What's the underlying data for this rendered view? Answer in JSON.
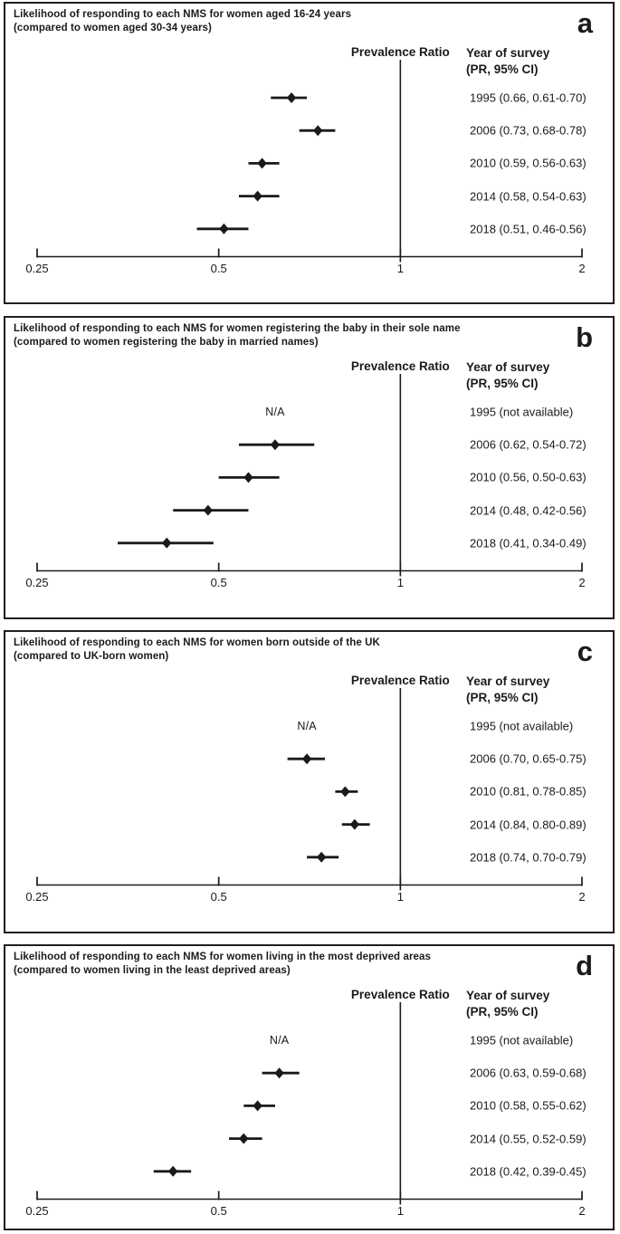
{
  "page": {
    "background": "#ffffff",
    "text_color": "#1a1a1a",
    "line_color": "#1a1a1a",
    "border_color": "#1f1f1f"
  },
  "headers": {
    "prevalence": "Prevalence Ratio",
    "year_line1": "Year of survey",
    "year_line2": "(PR, 95% CI)"
  },
  "na_text": "N/A",
  "axis": {
    "scale": "log2",
    "min": 0.25,
    "max": 2,
    "tick_values": [
      0.25,
      0.5,
      1,
      2
    ],
    "ticks": [
      "0.25",
      "0.5",
      "1",
      "2"
    ],
    "reference_value": 1
  },
  "chart_data": [
    {
      "type": "scatter",
      "subtype": "forest-plot",
      "panel_label": "a",
      "title": "Likelihood of responding to each NMS for women aged 16-24 years",
      "subtitle": "(compared to women aged 30-34 years)",
      "xlabel": "Prevalence Ratio",
      "x_scale": "log",
      "xlim": [
        0.25,
        2
      ],
      "reference_line": 1,
      "series": [
        {
          "year": "1995",
          "pr": 0.66,
          "ci_low": 0.61,
          "ci_high": 0.7,
          "label": "1995 (0.66, 0.61-0.70)"
        },
        {
          "year": "2006",
          "pr": 0.73,
          "ci_low": 0.68,
          "ci_high": 0.78,
          "label": "2006 (0.73, 0.68-0.78)"
        },
        {
          "year": "2010",
          "pr": 0.59,
          "ci_low": 0.56,
          "ci_high": 0.63,
          "label": "2010 (0.59, 0.56-0.63)"
        },
        {
          "year": "2014",
          "pr": 0.58,
          "ci_low": 0.54,
          "ci_high": 0.63,
          "label": "2014 (0.58, 0.54-0.63)"
        },
        {
          "year": "2018",
          "pr": 0.51,
          "ci_low": 0.46,
          "ci_high": 0.56,
          "label": "2018 (0.51, 0.46-0.56)"
        }
      ]
    },
    {
      "type": "scatter",
      "subtype": "forest-plot",
      "panel_label": "b",
      "title": "Likelihood of responding to each NMS for women registering the baby in their sole name",
      "subtitle": "(compared to women registering the baby in married names)",
      "xlabel": "Prevalence Ratio",
      "x_scale": "log",
      "xlim": [
        0.25,
        2
      ],
      "reference_line": 1,
      "series": [
        {
          "year": "1995",
          "pr": null,
          "ci_low": null,
          "ci_high": null,
          "label": "1995 (not available)",
          "na_at": 0.62
        },
        {
          "year": "2006",
          "pr": 0.62,
          "ci_low": 0.54,
          "ci_high": 0.72,
          "label": "2006 (0.62, 0.54-0.72)"
        },
        {
          "year": "2010",
          "pr": 0.56,
          "ci_low": 0.5,
          "ci_high": 0.63,
          "label": "2010 (0.56, 0.50-0.63)"
        },
        {
          "year": "2014",
          "pr": 0.48,
          "ci_low": 0.42,
          "ci_high": 0.56,
          "label": "2014 (0.48, 0.42-0.56)"
        },
        {
          "year": "2018",
          "pr": 0.41,
          "ci_low": 0.34,
          "ci_high": 0.49,
          "label": "2018 (0.41, 0.34-0.49)"
        }
      ]
    },
    {
      "type": "scatter",
      "subtype": "forest-plot",
      "panel_label": "c",
      "title": "Likelihood of responding to each NMS for women born outside of the UK",
      "subtitle": "(compared to UK-born women)",
      "xlabel": "Prevalence Ratio",
      "x_scale": "log",
      "xlim": [
        0.25,
        2
      ],
      "reference_line": 1,
      "series": [
        {
          "year": "1995",
          "pr": null,
          "ci_low": null,
          "ci_high": null,
          "label": "1995 (not available)",
          "na_at": 0.7
        },
        {
          "year": "2006",
          "pr": 0.7,
          "ci_low": 0.65,
          "ci_high": 0.75,
          "label": "2006 (0.70, 0.65-0.75)"
        },
        {
          "year": "2010",
          "pr": 0.81,
          "ci_low": 0.78,
          "ci_high": 0.85,
          "label": "2010 (0.81, 0.78-0.85)"
        },
        {
          "year": "2014",
          "pr": 0.84,
          "ci_low": 0.8,
          "ci_high": 0.89,
          "label": "2014 (0.84, 0.80-0.89)"
        },
        {
          "year": "2018",
          "pr": 0.74,
          "ci_low": 0.7,
          "ci_high": 0.79,
          "label": "2018 (0.74, 0.70-0.79)"
        }
      ]
    },
    {
      "type": "scatter",
      "subtype": "forest-plot",
      "panel_label": "d",
      "title": "Likelihood of responding to each NMS for women living in the most deprived areas",
      "subtitle": "(compared to women living in the least deprived areas)",
      "xlabel": "Prevalence Ratio",
      "x_scale": "log",
      "xlim": [
        0.25,
        2
      ],
      "reference_line": 1,
      "series": [
        {
          "year": "1995",
          "pr": null,
          "ci_low": null,
          "ci_high": null,
          "label": "1995 (not available)",
          "na_at": 0.63
        },
        {
          "year": "2006",
          "pr": 0.63,
          "ci_low": 0.59,
          "ci_high": 0.68,
          "label": "2006 (0.63, 0.59-0.68)"
        },
        {
          "year": "2010",
          "pr": 0.58,
          "ci_low": 0.55,
          "ci_high": 0.62,
          "label": "2010 (0.58, 0.55-0.62)"
        },
        {
          "year": "2014",
          "pr": 0.55,
          "ci_low": 0.52,
          "ci_high": 0.59,
          "label": "2014 (0.55, 0.52-0.59)"
        },
        {
          "year": "2018",
          "pr": 0.42,
          "ci_low": 0.39,
          "ci_high": 0.45,
          "label": "2018 (0.42, 0.39-0.45)"
        }
      ]
    }
  ]
}
